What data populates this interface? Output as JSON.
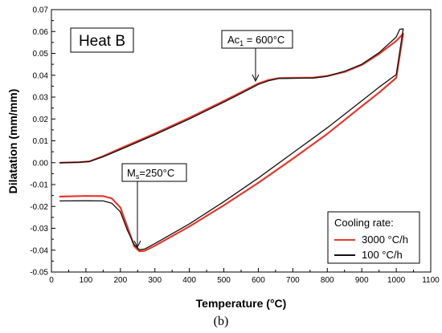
{
  "caption": "(b)",
  "chart_data": {
    "type": "line",
    "xlabel": "Temperature (°C)",
    "ylabel": "Dilatation (mm/mm)",
    "xlim": [
      0,
      1100
    ],
    "ylim": [
      -0.05,
      0.07
    ],
    "x_ticks": [
      "0",
      "100",
      "200",
      "300",
      "400",
      "500",
      "600",
      "700",
      "800",
      "900",
      "1000",
      "1100"
    ],
    "y_ticks": [
      "-0.05",
      "-0.04",
      "-0.03",
      "-0.02",
      "-0.01",
      "0.00",
      "0.01",
      "0.02",
      "0.03",
      "0.04",
      "0.05",
      "0.06",
      "0.07"
    ],
    "grid": false,
    "panel_label": "Heat B",
    "annotations": [
      {
        "main": "Ac",
        "sub": "1",
        "rest": " = 600°C",
        "point": [
          600,
          0.0365
        ]
      },
      {
        "main": "M",
        "sub": "s",
        "rest": "=250°C",
        "point": [
          250,
          -0.04
        ]
      }
    ],
    "legend": {
      "title": "Cooling rate:",
      "entries": [
        "3000 °C/h",
        "100 °C/h"
      ],
      "position": "bottom-right"
    },
    "series": [
      {
        "name": "3000 °C/h",
        "color": "#e8372b",
        "heating": [
          [
            25,
            0
          ],
          [
            80,
            0.0002
          ],
          [
            110,
            0.0006
          ],
          [
            150,
            0.003
          ],
          [
            200,
            0.0065
          ],
          [
            300,
            0.0133
          ],
          [
            400,
            0.0205
          ],
          [
            500,
            0.0282
          ],
          [
            560,
            0.033
          ],
          [
            600,
            0.0362
          ],
          [
            630,
            0.0378
          ],
          [
            660,
            0.0387
          ],
          [
            700,
            0.0388
          ],
          [
            760,
            0.0389
          ],
          [
            800,
            0.0397
          ],
          [
            850,
            0.0415
          ],
          [
            900,
            0.0447
          ],
          [
            950,
            0.0497
          ],
          [
            1000,
            0.0557
          ],
          [
            1020,
            0.059
          ]
        ],
        "cooling": [
          [
            25,
            -0.0155
          ],
          [
            100,
            -0.0152
          ],
          [
            150,
            -0.0153
          ],
          [
            175,
            -0.0163
          ],
          [
            200,
            -0.0205
          ],
          [
            220,
            -0.0292
          ],
          [
            240,
            -0.0382
          ],
          [
            255,
            -0.0405
          ],
          [
            270,
            -0.0403
          ],
          [
            300,
            -0.038
          ],
          [
            400,
            -0.0292
          ],
          [
            500,
            -0.0195
          ],
          [
            600,
            -0.0092
          ],
          [
            700,
            0.0018
          ],
          [
            800,
            0.0132
          ],
          [
            900,
            0.0258
          ],
          [
            950,
            0.032
          ],
          [
            1000,
            0.0388
          ],
          [
            1020,
            0.059
          ]
        ]
      },
      {
        "name": "100 °C/h",
        "color": "#111111",
        "heating": [
          [
            25,
            0
          ],
          [
            80,
            0.0002
          ],
          [
            110,
            0.0005
          ],
          [
            150,
            0.0027
          ],
          [
            200,
            0.006
          ],
          [
            300,
            0.0128
          ],
          [
            400,
            0.02
          ],
          [
            500,
            0.0277
          ],
          [
            560,
            0.0325
          ],
          [
            600,
            0.0358
          ],
          [
            630,
            0.0375
          ],
          [
            660,
            0.0385
          ],
          [
            700,
            0.0386
          ],
          [
            760,
            0.0387
          ],
          [
            800,
            0.0395
          ],
          [
            850,
            0.0418
          ],
          [
            900,
            0.045
          ],
          [
            950,
            0.0503
          ],
          [
            1000,
            0.0575
          ],
          [
            1010,
            0.061
          ],
          [
            1020,
            0.0612
          ]
        ],
        "cooling": [
          [
            25,
            -0.0175
          ],
          [
            100,
            -0.0174
          ],
          [
            150,
            -0.0175
          ],
          [
            175,
            -0.0185
          ],
          [
            200,
            -0.0225
          ],
          [
            220,
            -0.0308
          ],
          [
            240,
            -0.0375
          ],
          [
            255,
            -0.0398
          ],
          [
            270,
            -0.0395
          ],
          [
            300,
            -0.037
          ],
          [
            400,
            -0.028
          ],
          [
            500,
            -0.0178
          ],
          [
            600,
            -0.007
          ],
          [
            700,
            0.0045
          ],
          [
            800,
            0.016
          ],
          [
            900,
            0.0283
          ],
          [
            950,
            0.0345
          ],
          [
            1000,
            0.0403
          ],
          [
            1020,
            0.0612
          ]
        ]
      }
    ]
  }
}
